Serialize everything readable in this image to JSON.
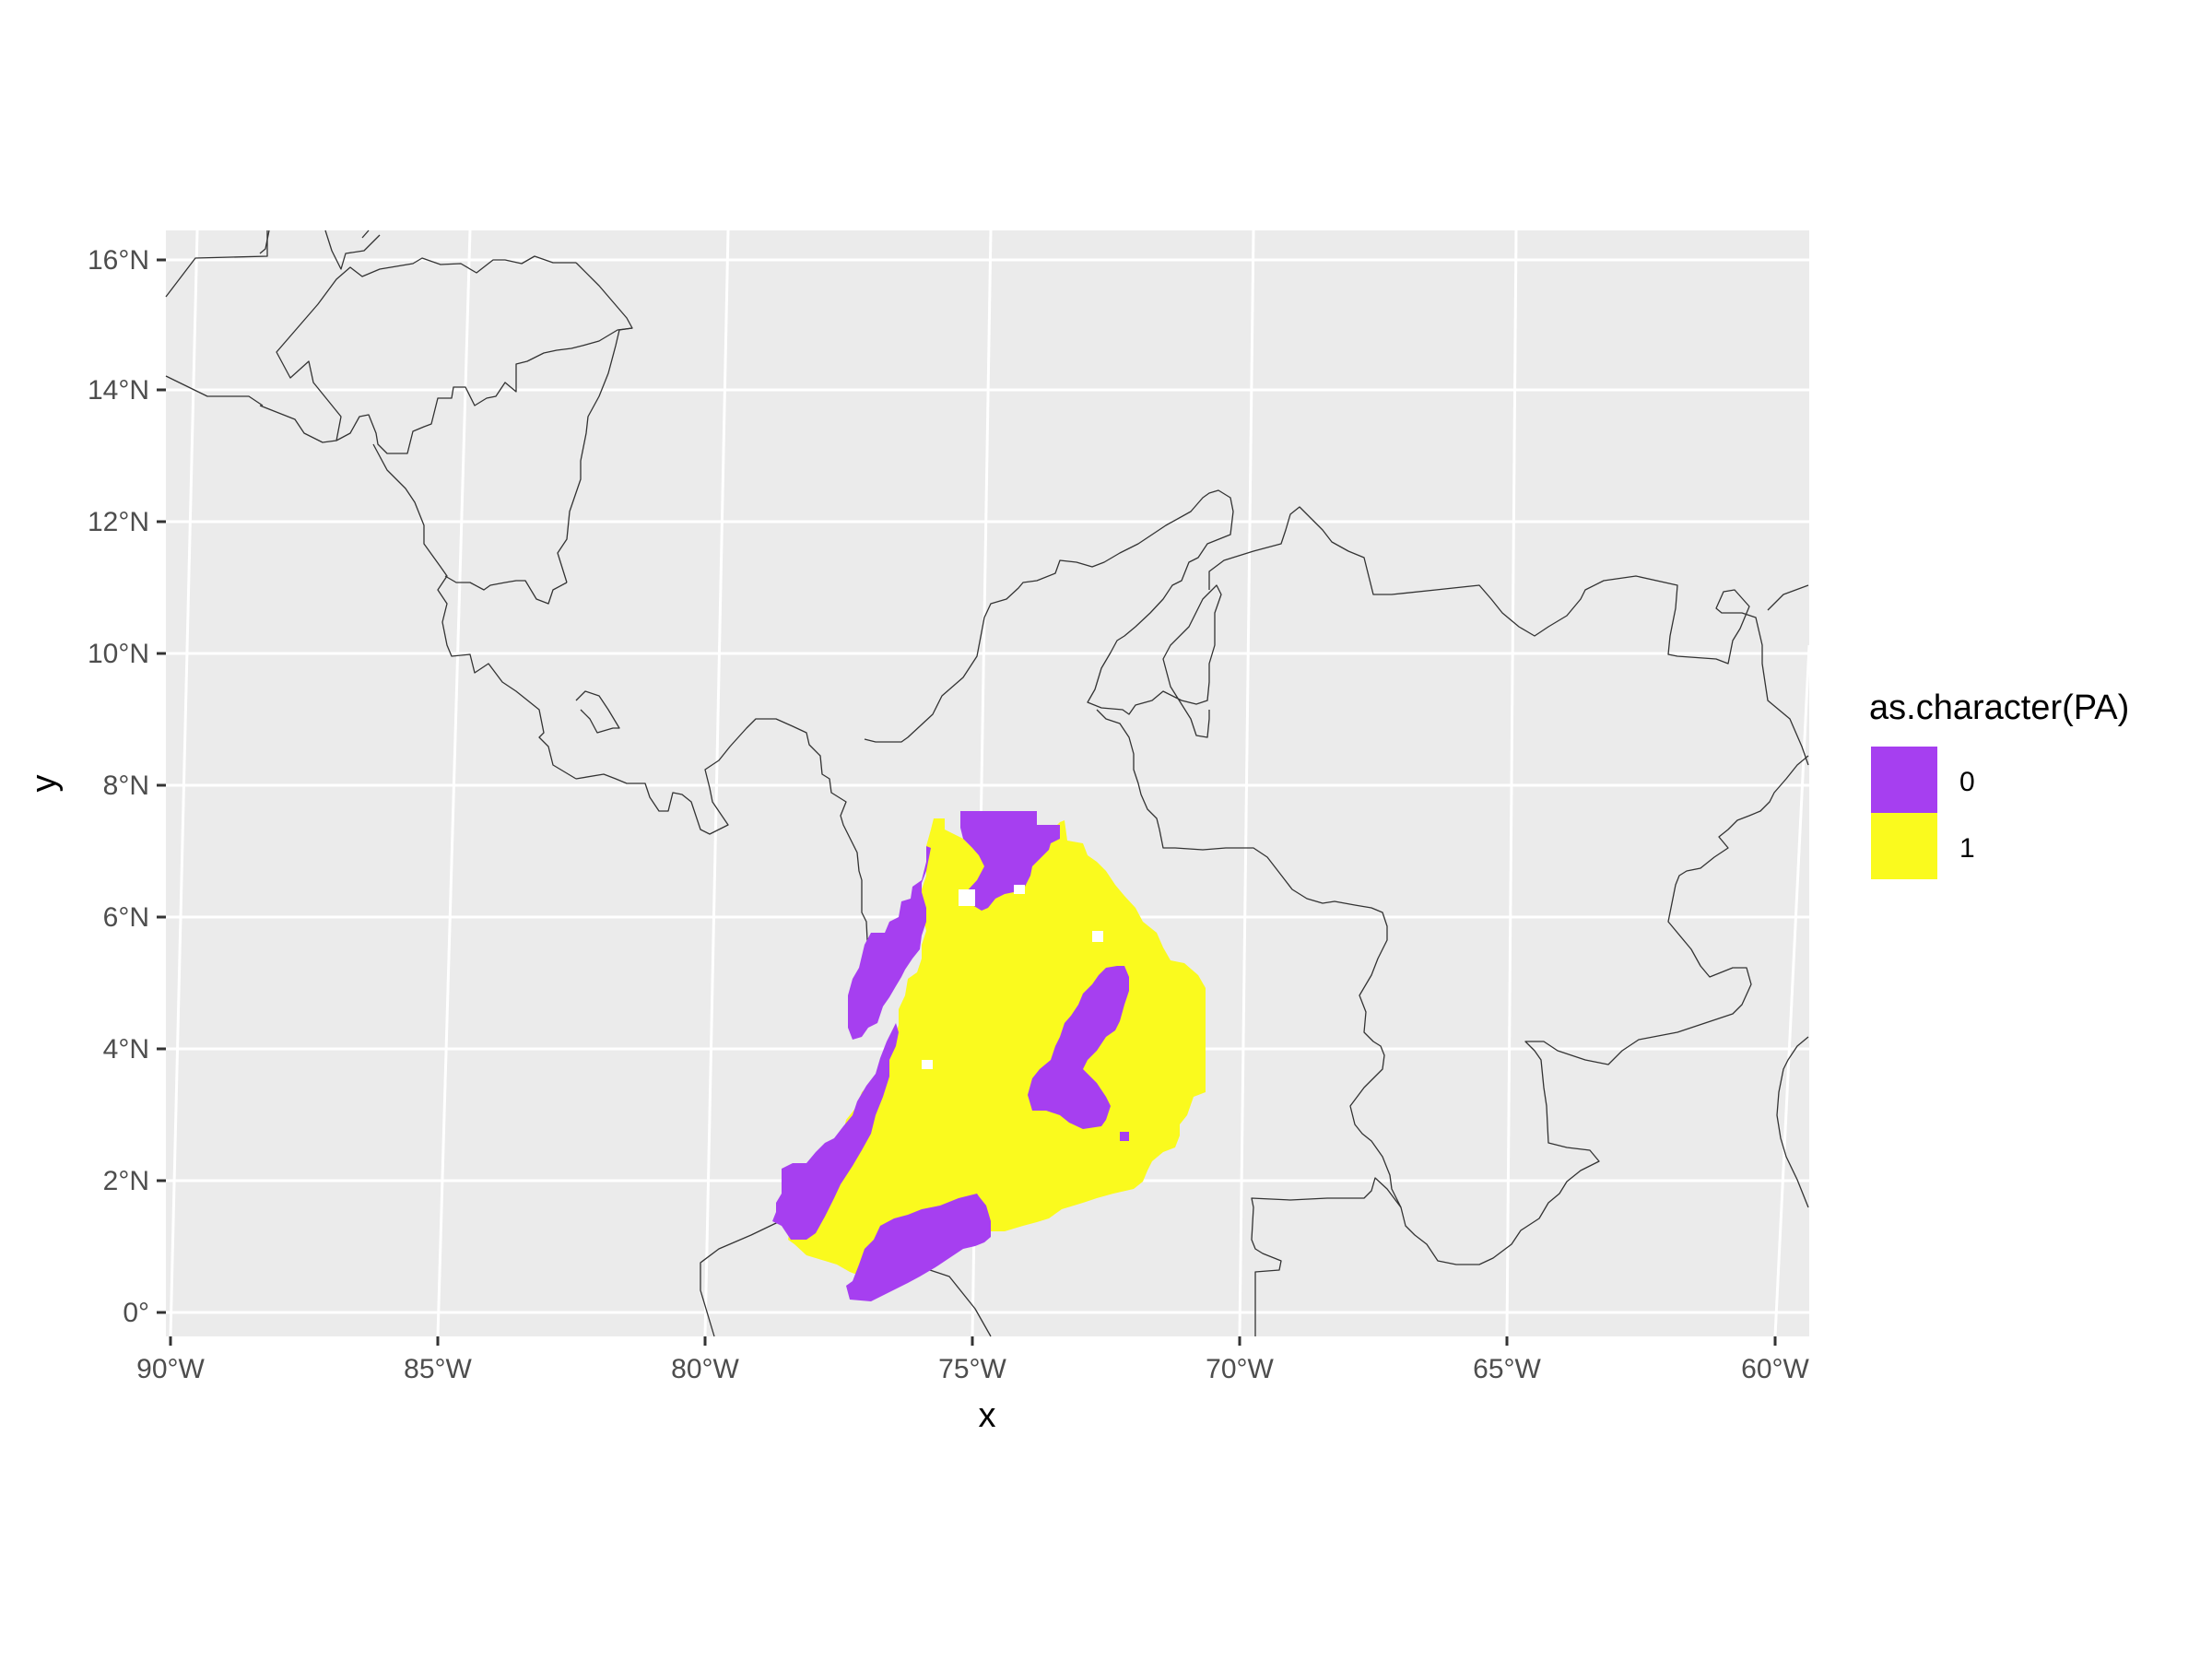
{
  "plot": {
    "panel_background": "#ebebeb",
    "grid_color": "#ffffff",
    "border_color": "#333333",
    "x_axis_title": "x",
    "y_axis_title": "y",
    "x_ticks": [
      "90°W",
      "85°W",
      "80°W",
      "75°W",
      "70°W",
      "65°W",
      "60°W"
    ],
    "y_ticks": [
      "0°",
      "2°N",
      "4°N",
      "6°N",
      "8°N",
      "10°N",
      "12°N",
      "14°N",
      "16°N"
    ]
  },
  "legend": {
    "title": "as.character(PA)",
    "items": [
      {
        "label": "0",
        "color": "#a63ff0"
      },
      {
        "label": "1",
        "color": "#fafa1e"
      }
    ]
  }
}
